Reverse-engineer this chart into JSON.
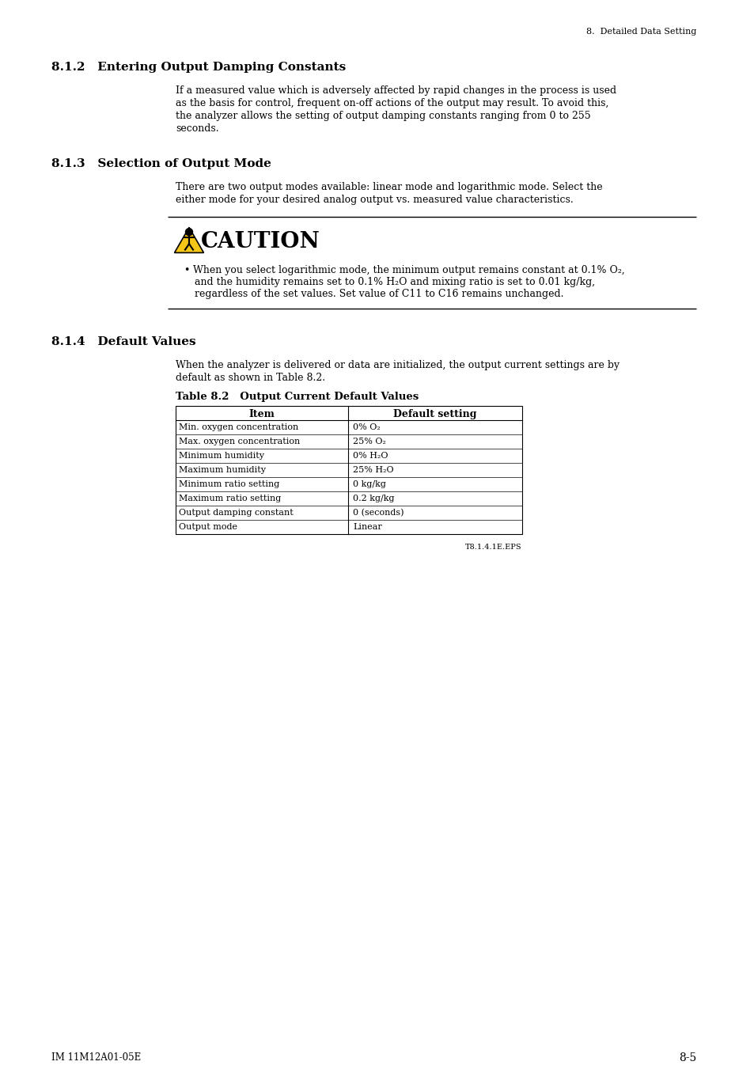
{
  "page_header": "8.  Detailed Data Setting",
  "section_812_title": "8.1.2   Entering Output Damping Constants",
  "section_812_body_lines": [
    "If a measured value which is adversely affected by rapid changes in the process is used",
    "as the basis for control, frequent on-off actions of the output may result. To avoid this,",
    "the analyzer allows the setting of output damping constants ranging from 0 to 255",
    "seconds."
  ],
  "section_813_title": "8.1.3   Selection of Output Mode",
  "section_813_body_lines": [
    "There are two output modes available: linear mode and logarithmic mode. Select the",
    "either mode for your desired analog output vs. measured value characteristics."
  ],
  "caution_title": "CAUTION",
  "caution_bullet_lines": [
    "When you select logarithmic mode, the minimum output remains constant at 0.1% O₂,",
    "and the humidity remains set to 0.1% H₂O and mixing ratio is set to 0.01 kg/kg,",
    "regardless of the set values. Set value of C11 to C16 remains unchanged."
  ],
  "section_814_title": "8.1.4   Default Values",
  "section_814_body_lines": [
    "When the analyzer is delivered or data are initialized, the output current settings are by",
    "default as shown in Table 8.2."
  ],
  "table_title": "Table 8.2   Output Current Default Values",
  "table_headers": [
    "Item",
    "Default setting"
  ],
  "table_rows": [
    [
      "Min. oxygen concentration",
      "0% O₂"
    ],
    [
      "Max. oxygen concentration",
      "25% O₂"
    ],
    [
      "Minimum humidity",
      "0% H₂O"
    ],
    [
      "Maximum humidity",
      "25% H₂O"
    ],
    [
      "Minimum ratio setting",
      "0 kg/kg"
    ],
    [
      "Maximum ratio setting",
      "0.2 kg/kg"
    ],
    [
      "Output damping constant",
      "0 (seconds)"
    ],
    [
      "Output mode",
      "Linear"
    ]
  ],
  "table_footnote": "T8.1.4.1E.EPS",
  "page_footer_left": "IM 11M12A01-05E",
  "page_footer_right": "8-5",
  "bg_color": "#ffffff"
}
